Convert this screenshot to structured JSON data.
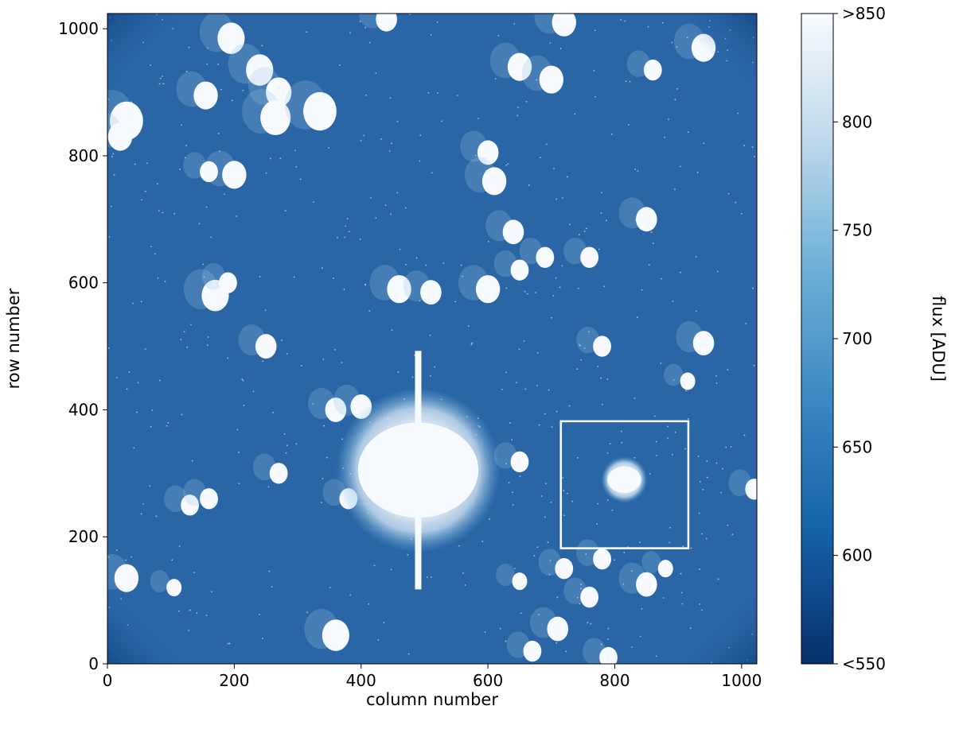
{
  "chart_data": {
    "type": "heatmap",
    "title": "",
    "xlabel": "column number",
    "ylabel": "row number",
    "xlim": [
      0,
      1024
    ],
    "ylim": [
      0,
      1024
    ],
    "xticks": [
      "0",
      "200",
      "400",
      "600",
      "800",
      "1000"
    ],
    "xtick_values": [
      0,
      200,
      400,
      600,
      800,
      1000
    ],
    "yticks": [
      "0",
      "200",
      "400",
      "600",
      "800",
      "1000"
    ],
    "ytick_values": [
      0,
      200,
      400,
      600,
      800,
      1000
    ],
    "colormap": "Blues_r",
    "colorbar": {
      "label": "flux [ADU]",
      "range": [
        550,
        850
      ],
      "ticks": [
        "<550",
        "600",
        "650",
        "700",
        "750",
        "800",
        ">850"
      ],
      "tick_values": [
        550,
        600,
        650,
        700,
        750,
        800,
        850
      ],
      "low_color": "#08306b",
      "mid_color": "#2b6cae",
      "high_color": "#f7fbff"
    },
    "background_color": "#2a66a6",
    "highlight_box": {
      "col_range": [
        715,
        916
      ],
      "row_range": [
        182,
        382
      ],
      "color": "#ffffff"
    },
    "bright_sources": [
      {
        "col": 490,
        "row": 305,
        "r": 100,
        "peak": "saturated"
      },
      {
        "col": 815,
        "row": 290,
        "r": 28,
        "peak": "saturated"
      }
    ],
    "sources": [
      [
        195,
        985,
        18
      ],
      [
        240,
        935,
        18
      ],
      [
        270,
        900,
        17
      ],
      [
        155,
        895,
        16
      ],
      [
        265,
        860,
        20
      ],
      [
        30,
        855,
        22
      ],
      [
        20,
        830,
        16
      ],
      [
        335,
        870,
        22
      ],
      [
        440,
        1015,
        14
      ],
      [
        720,
        1010,
        16
      ],
      [
        650,
        940,
        16
      ],
      [
        700,
        920,
        16
      ],
      [
        940,
        970,
        16
      ],
      [
        860,
        935,
        12
      ],
      [
        200,
        770,
        16
      ],
      [
        160,
        775,
        12
      ],
      [
        600,
        805,
        14
      ],
      [
        610,
        760,
        16
      ],
      [
        850,
        700,
        14
      ],
      [
        760,
        640,
        12
      ],
      [
        690,
        640,
        12
      ],
      [
        640,
        680,
        14
      ],
      [
        650,
        620,
        12
      ],
      [
        600,
        590,
        16
      ],
      [
        460,
        590,
        16
      ],
      [
        510,
        585,
        14
      ],
      [
        170,
        580,
        18
      ],
      [
        190,
        600,
        12
      ],
      [
        250,
        500,
        14
      ],
      [
        940,
        505,
        14
      ],
      [
        780,
        500,
        12
      ],
      [
        915,
        445,
        10
      ],
      [
        360,
        400,
        14
      ],
      [
        400,
        405,
        14
      ],
      [
        650,
        318,
        12
      ],
      [
        380,
        260,
        12
      ],
      [
        270,
        300,
        12
      ],
      [
        130,
        250,
        12
      ],
      [
        160,
        260,
        12
      ],
      [
        30,
        135,
        16
      ],
      [
        105,
        120,
        10
      ],
      [
        360,
        45,
        18
      ],
      [
        670,
        20,
        12
      ],
      [
        790,
        10,
        12
      ],
      [
        780,
        165,
        12
      ],
      [
        720,
        150,
        12
      ],
      [
        710,
        55,
        14
      ],
      [
        850,
        125,
        14
      ],
      [
        880,
        150,
        10
      ],
      [
        650,
        130,
        10
      ],
      [
        1020,
        275,
        12
      ],
      [
        760,
        105,
        12
      ]
    ]
  }
}
